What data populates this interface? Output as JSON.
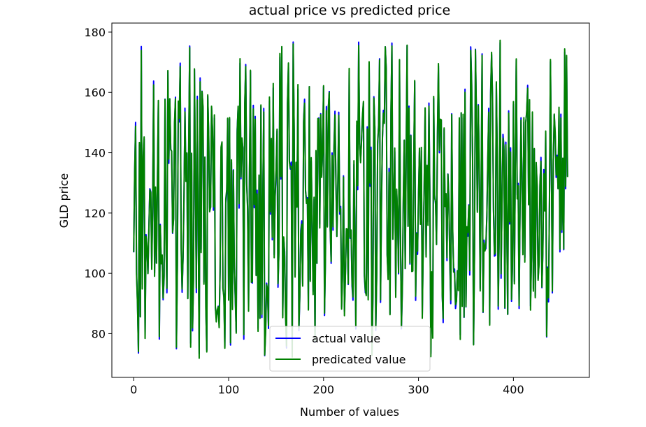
{
  "chart_data": {
    "type": "line",
    "title": "actual price vs predicted price",
    "xlabel": "Number of values",
    "ylabel": "GLD price",
    "xlim": [
      -23,
      480
    ],
    "ylim": [
      65.5,
      183
    ],
    "xticks": [
      0,
      100,
      200,
      300,
      400
    ],
    "xtick_labels": [
      "0",
      "100",
      "200",
      "300",
      "400"
    ],
    "yticks": [
      80,
      100,
      120,
      140,
      160,
      180
    ],
    "ytick_labels": [
      "80",
      "100",
      "120",
      "140",
      "160",
      "180"
    ],
    "grid": false,
    "legend_position": "lower center",
    "n_points": 458,
    "seed": 7,
    "series": [
      {
        "name": "actual value",
        "color": "#0000ff"
      },
      {
        "name": "predicated value",
        "color": "#008000"
      }
    ]
  }
}
